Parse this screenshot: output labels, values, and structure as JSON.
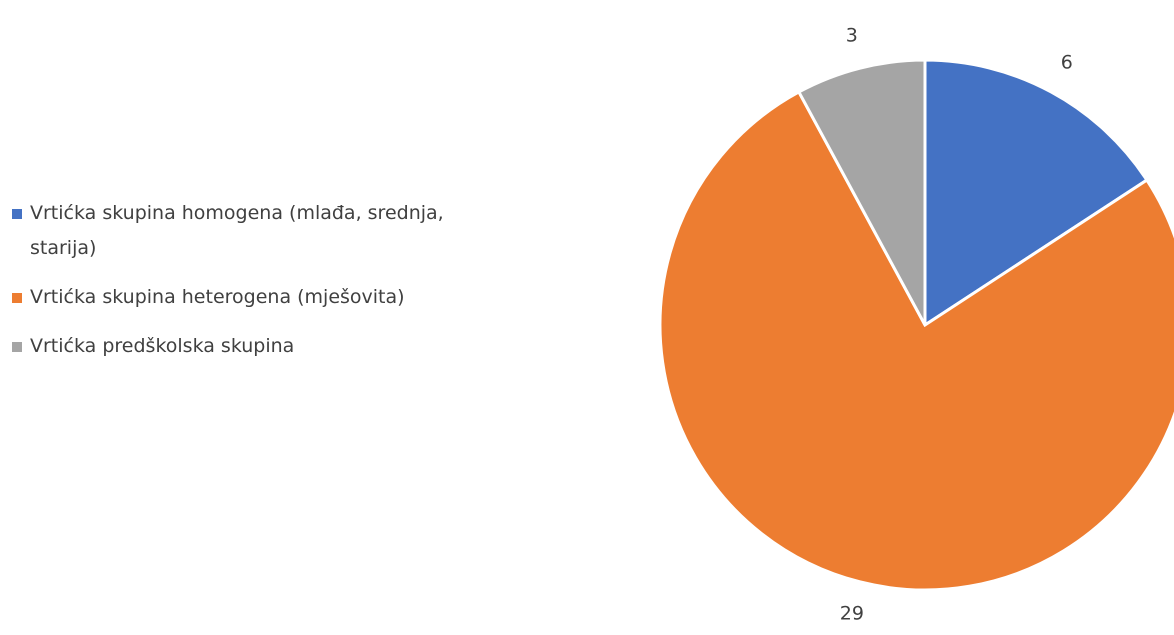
{
  "chart_data": {
    "type": "pie",
    "categories": [
      "Vrtićka skupina homogena (mlađa, srednja, starija)",
      "Vrtićka skupina heterogena (mješovita)",
      "Vrtićka predškolska skupina"
    ],
    "values": [
      6,
      29,
      3
    ],
    "colors": [
      "#4472c4",
      "#ed7d31",
      "#a5a5a5"
    ],
    "legend": "left"
  }
}
